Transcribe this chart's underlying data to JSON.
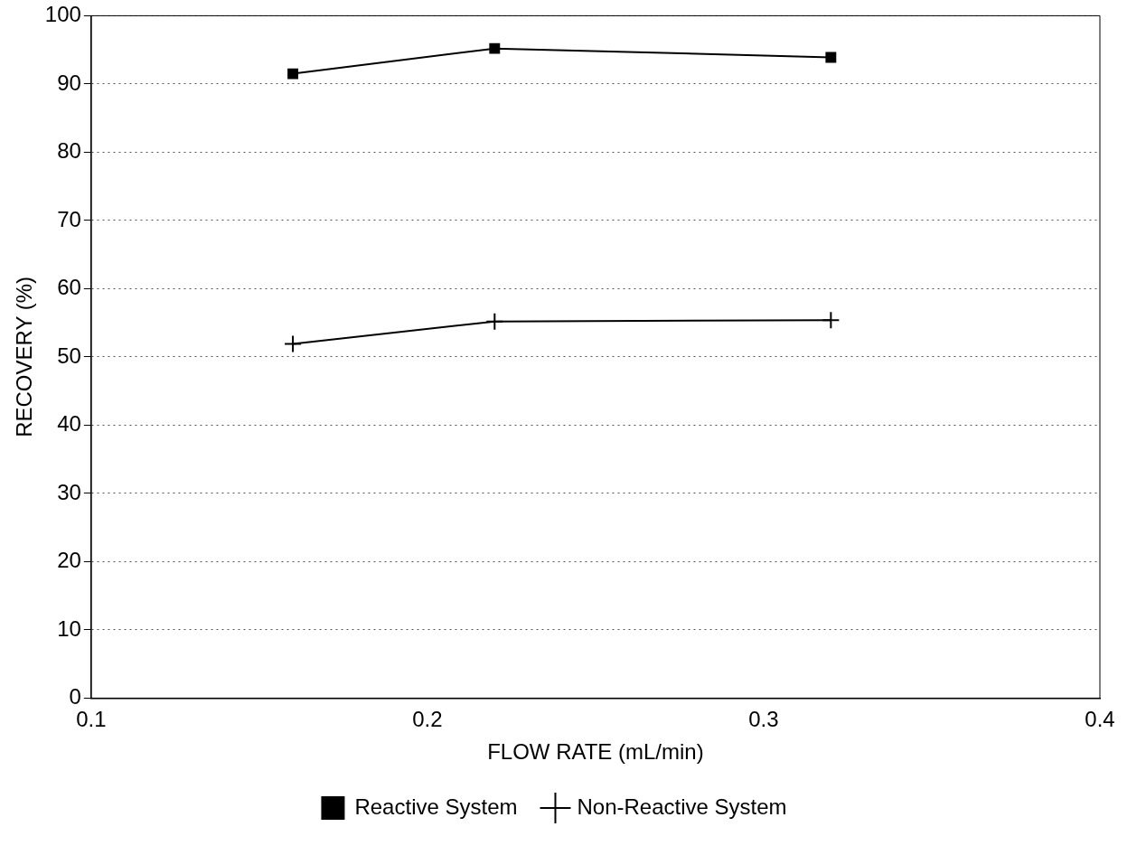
{
  "chart_data": {
    "type": "line",
    "xlabel": "FLOW RATE (mL/min)",
    "ylabel": "RECOVERY (%)",
    "xlim": [
      0.1,
      0.4
    ],
    "xticks": [
      0.1,
      0.2,
      0.3,
      0.4
    ],
    "ylim": [
      0,
      100
    ],
    "yticks": [
      0,
      10,
      20,
      30,
      40,
      50,
      60,
      70,
      80,
      90,
      100
    ],
    "grid": "y",
    "legend": "bottom",
    "line_style": "solid",
    "series": [
      {
        "name": "Reactive System",
        "color": "#000000",
        "marker": "square",
        "x": [
          0.16,
          0.22,
          0.32
        ],
        "values": [
          91.5,
          95.2,
          93.9
        ]
      },
      {
        "name": "Non-Reactive System",
        "color": "#000000",
        "marker": "cross",
        "x": [
          0.16,
          0.22,
          0.32
        ],
        "values": [
          51.9,
          55.2,
          55.4
        ]
      }
    ]
  }
}
